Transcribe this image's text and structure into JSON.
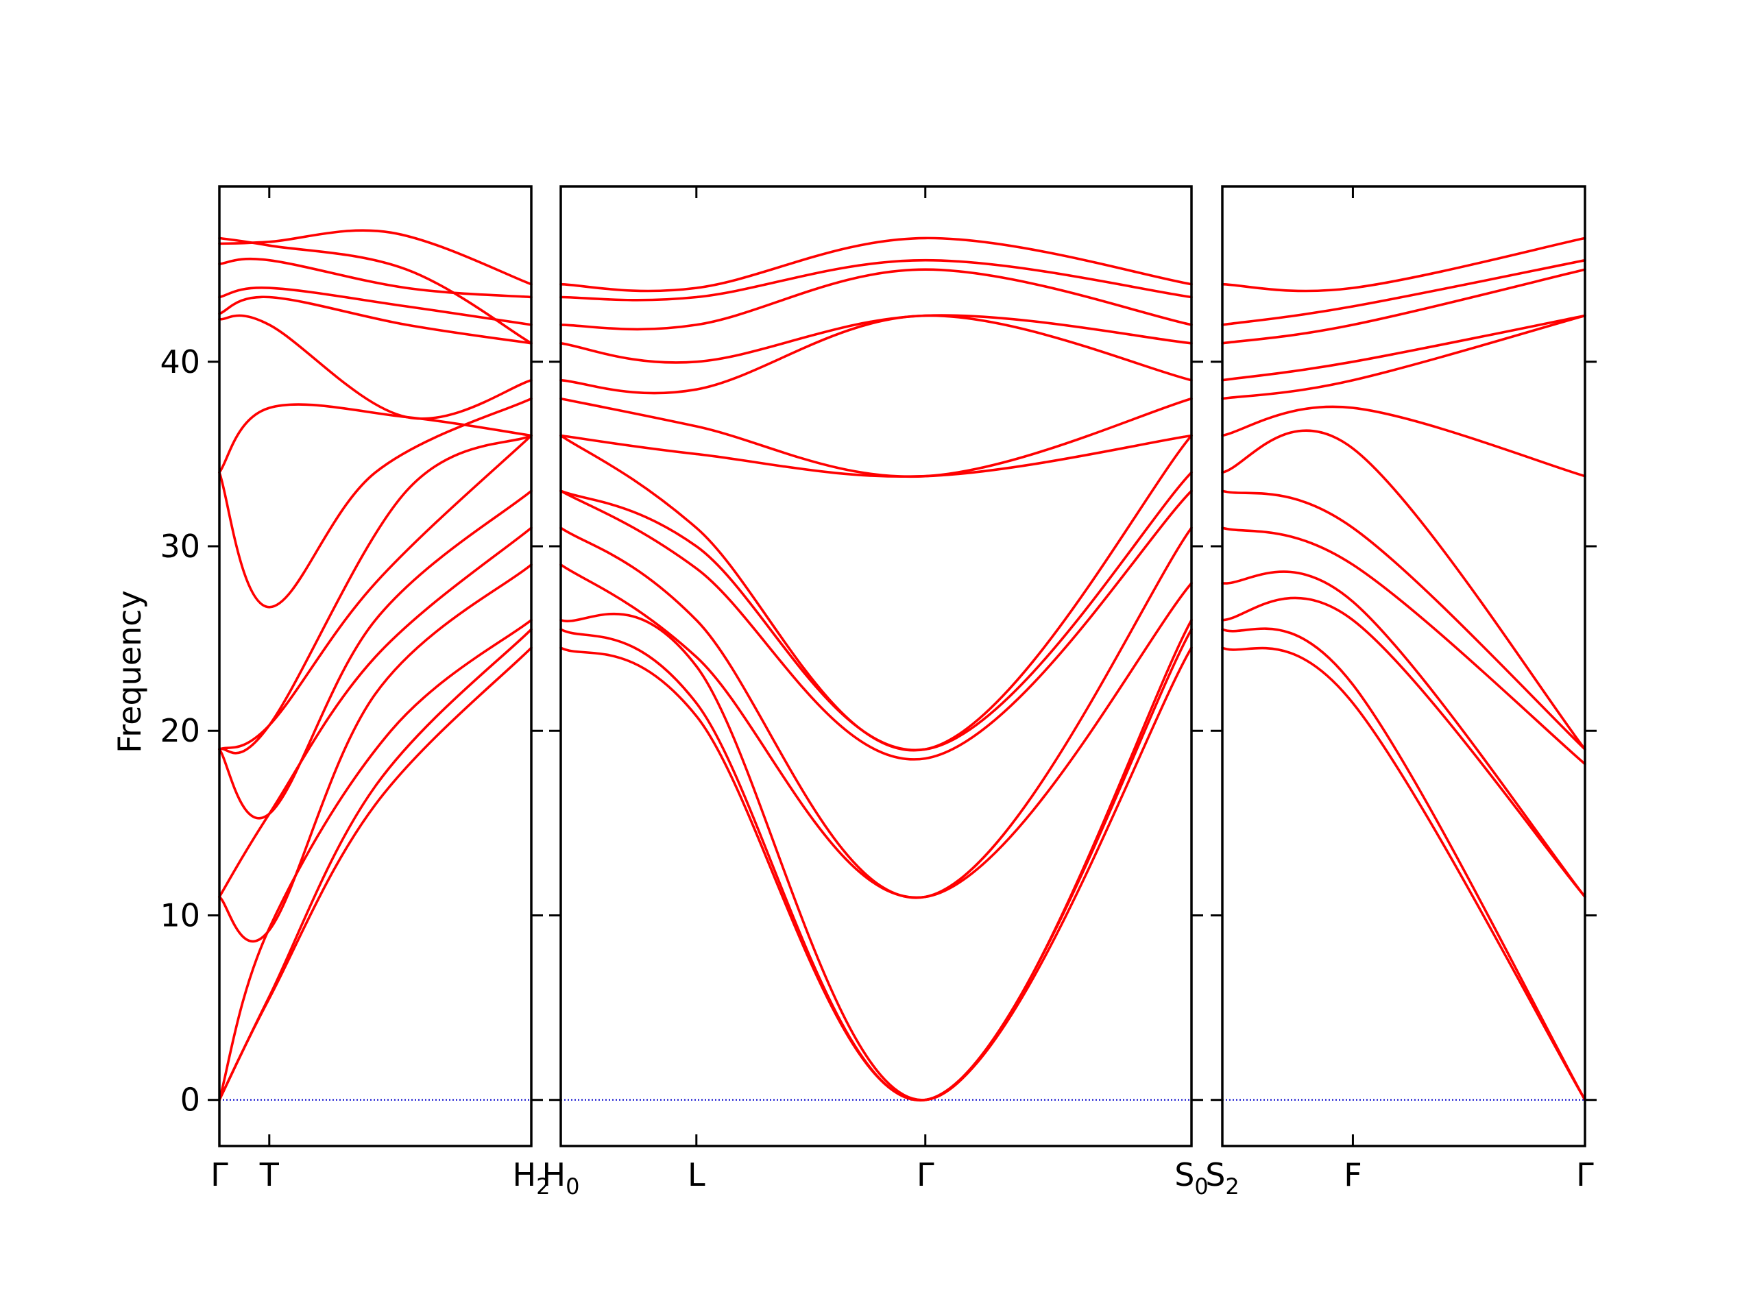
{
  "chart_data": {
    "type": "line",
    "title": "",
    "xlabel": "",
    "ylabel": "Frequency",
    "ylim": [
      -2.5,
      49.5
    ],
    "yticks": [
      0,
      10,
      20,
      30,
      40
    ],
    "grid": false,
    "colors": {
      "band": "#ff0000",
      "zero_line": "#0000cc",
      "axes": "#000000"
    },
    "panels": [
      {
        "name": "Γ–T–H₂",
        "xticks": [
          {
            "pos": 0.0,
            "label": "Γ",
            "sub": ""
          },
          {
            "pos": 0.16,
            "label": "T",
            "sub": ""
          },
          {
            "pos": 1.0,
            "label": "H",
            "sub": "2"
          }
        ],
        "series": [
          {
            "values": [
              [
                0,
                0
              ],
              [
                0.16,
                5.5
              ],
              [
                0.5,
                16
              ],
              [
                1,
                24.5
              ]
            ]
          },
          {
            "values": [
              [
                0,
                0
              ],
              [
                0.16,
                5.6
              ],
              [
                0.5,
                17
              ],
              [
                1,
                25.5
              ]
            ]
          },
          {
            "values": [
              [
                0,
                0
              ],
              [
                0.16,
                9.3
              ],
              [
                0.55,
                20
              ],
              [
                1,
                26
              ]
            ]
          },
          {
            "values": [
              [
                0,
                11
              ],
              [
                0.16,
                9.2
              ],
              [
                0.5,
                22
              ],
              [
                1,
                29
              ]
            ]
          },
          {
            "values": [
              [
                0,
                11
              ],
              [
                0.16,
                15.5
              ],
              [
                0.5,
                24
              ],
              [
                1,
                31
              ]
            ]
          },
          {
            "values": [
              [
                0,
                19
              ],
              [
                0.16,
                15.5
              ],
              [
                0.5,
                26
              ],
              [
                1,
                33
              ]
            ]
          },
          {
            "values": [
              [
                0,
                19
              ],
              [
                0.16,
                20.3
              ],
              [
                0.5,
                28
              ],
              [
                1,
                36
              ]
            ]
          },
          {
            "values": [
              [
                0,
                19
              ],
              [
                0.16,
                20.3
              ],
              [
                0.6,
                33
              ],
              [
                1,
                36
              ]
            ]
          },
          {
            "values": [
              [
                0,
                34
              ],
              [
                0.16,
                26.7
              ],
              [
                0.5,
                34
              ],
              [
                1,
                38
              ]
            ]
          },
          {
            "values": [
              [
                0,
                34
              ],
              [
                0.16,
                37.5
              ],
              [
                0.6,
                37
              ],
              [
                1,
                36
              ]
            ]
          },
          {
            "values": [
              [
                0,
                42.3
              ],
              [
                0.16,
                42
              ],
              [
                0.6,
                37
              ],
              [
                1,
                39
              ]
            ]
          },
          {
            "values": [
              [
                0,
                42.6
              ],
              [
                0.16,
                43.5
              ],
              [
                0.6,
                42
              ],
              [
                1,
                41
              ]
            ]
          },
          {
            "values": [
              [
                0,
                43.5
              ],
              [
                0.16,
                44
              ],
              [
                0.6,
                43
              ],
              [
                1,
                42
              ]
            ]
          },
          {
            "values": [
              [
                0,
                45.3
              ],
              [
                0.16,
                45.5
              ],
              [
                0.6,
                44
              ],
              [
                1,
                43.5
              ]
            ]
          },
          {
            "values": [
              [
                0,
                46.4
              ],
              [
                0.16,
                46.5
              ],
              [
                0.55,
                47
              ],
              [
                1,
                44.2
              ]
            ]
          },
          {
            "values": [
              [
                0,
                46.7
              ],
              [
                0.16,
                46.3
              ],
              [
                0.6,
                45
              ],
              [
                1,
                41
              ]
            ]
          }
        ]
      },
      {
        "name": "H₀–L–Γ–S₀",
        "xticks": [
          {
            "pos": 0.0,
            "label": "H",
            "sub": "0"
          },
          {
            "pos": 0.215,
            "label": "L",
            "sub": ""
          },
          {
            "pos": 0.578,
            "label": "Γ",
            "sub": ""
          },
          {
            "pos": 1.0,
            "label": "S",
            "sub": "0"
          }
        ],
        "series": [
          {
            "values": [
              [
                0,
                24.5
              ],
              [
                0.215,
                20.8
              ],
              [
                0.578,
                0
              ],
              [
                1,
                24.5
              ]
            ]
          },
          {
            "values": [
              [
                0,
                25.5
              ],
              [
                0.215,
                21.5
              ],
              [
                0.578,
                0
              ],
              [
                1,
                25.5
              ]
            ]
          },
          {
            "values": [
              [
                0,
                26
              ],
              [
                0.215,
                23.5
              ],
              [
                0.578,
                0
              ],
              [
                1,
                26
              ]
            ]
          },
          {
            "values": [
              [
                0,
                29
              ],
              [
                0.215,
                24
              ],
              [
                0.578,
                11
              ],
              [
                1,
                28
              ]
            ]
          },
          {
            "values": [
              [
                0,
                31
              ],
              [
                0.215,
                26
              ],
              [
                0.578,
                11
              ],
              [
                1,
                31
              ]
            ]
          },
          {
            "values": [
              [
                0,
                33
              ],
              [
                0.215,
                28.8
              ],
              [
                0.578,
                18.5
              ],
              [
                1,
                33
              ]
            ]
          },
          {
            "values": [
              [
                0,
                33
              ],
              [
                0.215,
                30
              ],
              [
                0.578,
                19
              ],
              [
                1,
                34
              ]
            ]
          },
          {
            "values": [
              [
                0,
                36
              ],
              [
                0.215,
                31
              ],
              [
                0.578,
                19
              ],
              [
                1,
                36
              ]
            ]
          },
          {
            "values": [
              [
                0,
                36
              ],
              [
                0.215,
                35
              ],
              [
                0.578,
                33.8
              ],
              [
                1,
                36
              ]
            ]
          },
          {
            "values": [
              [
                0,
                38
              ],
              [
                0.215,
                36.5
              ],
              [
                0.578,
                33.8
              ],
              [
                1,
                38
              ]
            ]
          },
          {
            "values": [
              [
                0,
                39
              ],
              [
                0.215,
                38.5
              ],
              [
                0.578,
                42.5
              ],
              [
                1,
                39
              ]
            ]
          },
          {
            "values": [
              [
                0,
                41
              ],
              [
                0.215,
                40
              ],
              [
                0.578,
                42.5
              ],
              [
                1,
                41
              ]
            ]
          },
          {
            "values": [
              [
                0,
                42
              ],
              [
                0.215,
                42
              ],
              [
                0.578,
                45
              ],
              [
                1,
                42
              ]
            ]
          },
          {
            "values": [
              [
                0,
                43.5
              ],
              [
                0.215,
                43.5
              ],
              [
                0.578,
                45.5
              ],
              [
                1,
                43.5
              ]
            ]
          },
          {
            "values": [
              [
                0,
                44.2
              ],
              [
                0.215,
                44
              ],
              [
                0.578,
                46.7
              ],
              [
                1,
                44.2
              ]
            ]
          }
        ]
      },
      {
        "name": "S₂–F–Γ",
        "xticks": [
          {
            "pos": 0.0,
            "label": "S",
            "sub": "2"
          },
          {
            "pos": 0.36,
            "label": "F",
            "sub": ""
          },
          {
            "pos": 1.0,
            "label": "Γ",
            "sub": ""
          }
        ],
        "series": [
          {
            "values": [
              [
                0,
                24.5
              ],
              [
                0.36,
                21.5
              ],
              [
                1,
                0
              ]
            ]
          },
          {
            "values": [
              [
                0,
                25.5
              ],
              [
                0.36,
                22.5
              ],
              [
                1,
                0
              ]
            ]
          },
          {
            "values": [
              [
                0,
                26
              ],
              [
                0.36,
                26
              ],
              [
                1,
                11
              ]
            ]
          },
          {
            "values": [
              [
                0,
                28
              ],
              [
                0.36,
                27
              ],
              [
                1,
                11
              ]
            ]
          },
          {
            "values": [
              [
                0,
                31
              ],
              [
                0.36,
                29
              ],
              [
                1,
                18.2
              ]
            ]
          },
          {
            "values": [
              [
                0,
                33
              ],
              [
                0.36,
                31
              ],
              [
                1,
                19
              ]
            ]
          },
          {
            "values": [
              [
                0,
                34
              ],
              [
                0.36,
                35.3
              ],
              [
                1,
                19
              ]
            ]
          },
          {
            "values": [
              [
                0,
                36
              ],
              [
                0.36,
                37.5
              ],
              [
                1,
                33.8
              ]
            ]
          },
          {
            "values": [
              [
                0,
                38
              ],
              [
                0.36,
                39
              ],
              [
                1,
                42.5
              ]
            ]
          },
          {
            "values": [
              [
                0,
                39
              ],
              [
                0.36,
                40
              ],
              [
                1,
                42.5
              ]
            ]
          },
          {
            "values": [
              [
                0,
                41
              ],
              [
                0.36,
                42
              ],
              [
                1,
                45
              ]
            ]
          },
          {
            "values": [
              [
                0,
                42
              ],
              [
                0.36,
                43
              ],
              [
                1,
                45.5
              ]
            ]
          },
          {
            "values": [
              [
                0,
                44.2
              ],
              [
                0.36,
                44
              ],
              [
                1,
                46.7
              ]
            ]
          }
        ]
      }
    ]
  }
}
